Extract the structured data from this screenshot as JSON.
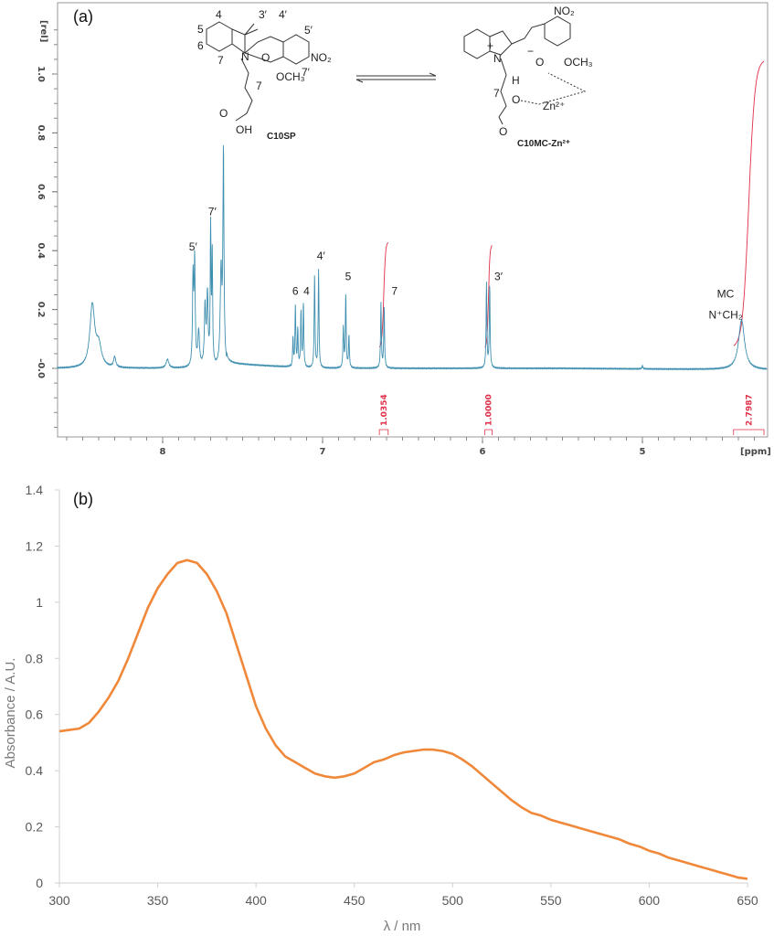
{
  "chart_data": [
    {
      "type": "line",
      "panel_label": "(a)",
      "xlabel": "[ppm]",
      "ylabel": "[rel]",
      "xlim": [
        8.66,
        4.22
      ],
      "x_reversed": true,
      "ylim": [
        -0.23,
        1.19
      ],
      "grid": false,
      "x_ticks": [
        {
          "v": 8,
          "label": "8"
        },
        {
          "v": 7,
          "label": "7"
        },
        {
          "v": 6,
          "label": "6"
        },
        {
          "v": 5,
          "label": "5"
        }
      ],
      "y_ticks": [
        {
          "v": 1.0,
          "label": "1.0"
        },
        {
          "v": 0.8,
          "label": "0.8"
        },
        {
          "v": 0.6,
          "label": "0.6"
        },
        {
          "v": 0.4,
          "label": "0.4"
        },
        {
          "v": 0.2,
          "label": "0.2"
        },
        {
          "v": 0.0,
          "label": "-0.0"
        }
      ],
      "line_color": "#3f8fb0",
      "integral_color": "#e0304a",
      "peaks": [
        {
          "ppm": 8.44,
          "height": 0.21,
          "width": 0.018
        },
        {
          "ppm": 8.4,
          "height": 0.07,
          "width": 0.02
        },
        {
          "ppm": 8.3,
          "height": 0.035,
          "width": 0.008
        },
        {
          "ppm": 7.97,
          "height": 0.03,
          "width": 0.01
        },
        {
          "ppm": 7.81,
          "height": 0.3,
          "width": 0.004
        },
        {
          "ppm": 7.8,
          "height": 0.35,
          "width": 0.004
        },
        {
          "ppm": 7.775,
          "height": 0.12,
          "width": 0.006
        },
        {
          "ppm": 7.735,
          "height": 0.2,
          "width": 0.005
        },
        {
          "ppm": 7.72,
          "height": 0.24,
          "width": 0.005
        },
        {
          "ppm": 7.7,
          "height": 0.46,
          "width": 0.003
        },
        {
          "ppm": 7.69,
          "height": 0.38,
          "width": 0.003
        },
        {
          "ppm": 7.635,
          "height": 0.32,
          "width": 0.006
        },
        {
          "ppm": 7.62,
          "height": 0.72,
          "width": 0.004
        },
        {
          "ppm": 7.185,
          "height": 0.1,
          "width": 0.003
        },
        {
          "ppm": 7.17,
          "height": 0.21,
          "width": 0.003
        },
        {
          "ppm": 7.155,
          "height": 0.13,
          "width": 0.003
        },
        {
          "ppm": 7.135,
          "height": 0.19,
          "width": 0.003
        },
        {
          "ppm": 7.12,
          "height": 0.22,
          "width": 0.003
        },
        {
          "ppm": 7.05,
          "height": 0.32,
          "width": 0.003
        },
        {
          "ppm": 7.025,
          "height": 0.33,
          "width": 0.003
        },
        {
          "ppm": 6.87,
          "height": 0.14,
          "width": 0.003
        },
        {
          "ppm": 6.855,
          "height": 0.25,
          "width": 0.003
        },
        {
          "ppm": 6.835,
          "height": 0.11,
          "width": 0.003
        },
        {
          "ppm": 6.635,
          "height": 0.22,
          "width": 0.003
        },
        {
          "ppm": 6.615,
          "height": 0.21,
          "width": 0.003
        },
        {
          "ppm": 5.975,
          "height": 0.29,
          "width": 0.003
        },
        {
          "ppm": 5.955,
          "height": 0.28,
          "width": 0.003
        },
        {
          "ppm": 5.0,
          "height": 0.01,
          "width": 0.004
        },
        {
          "ppm": 4.38,
          "height": 0.17,
          "width": 0.022
        }
      ],
      "peak_labels": [
        {
          "ppm": 7.81,
          "rel": 0.4,
          "label": "5′"
        },
        {
          "ppm": 7.69,
          "rel": 0.52,
          "label": "7′"
        },
        {
          "ppm": 7.17,
          "rel": 0.25,
          "label": "6"
        },
        {
          "ppm": 7.1,
          "rel": 0.25,
          "label": "4"
        },
        {
          "ppm": 7.01,
          "rel": 0.37,
          "label": "4′"
        },
        {
          "ppm": 6.84,
          "rel": 0.3,
          "label": "5"
        },
        {
          "ppm": 6.55,
          "rel": 0.25,
          "label": "7"
        },
        {
          "ppm": 5.9,
          "rel": 0.3,
          "label": "3′"
        },
        {
          "ppm": 4.48,
          "rel": 0.24,
          "label": "MC"
        },
        {
          "ppm": 4.48,
          "rel": 0.17,
          "label": "N⁺CH₂"
        }
      ],
      "integrals": [
        {
          "from": 6.645,
          "to": 6.59,
          "start": 0.07,
          "end": 0.43,
          "value": "1.0354"
        },
        {
          "from": 5.985,
          "to": 5.94,
          "start": 0.07,
          "end": 0.42,
          "value": "1.0000"
        },
        {
          "from": 4.43,
          "to": 4.24,
          "start": 0.07,
          "end": 1.05,
          "value": "2.7987"
        }
      ],
      "structures": {
        "left_name": "C10SP",
        "right_name": "C10MC-Zn²⁺",
        "left_atoms": {
          "n": "N",
          "o": "O",
          "no2": "NO₂",
          "och3": "OCH₃",
          "oh": "OH",
          "o_carbonyl": "O",
          "chain": "7",
          "pos4": "4",
          "pos5": "5",
          "pos6": "6",
          "pos7": "7",
          "pos3p": "3′",
          "pos4p": "4′",
          "pos5p": "5′",
          "pos7p": "7′"
        },
        "right_atoms": {
          "n": "N",
          "plus": "+",
          "minus": "−",
          "o": "O",
          "no2": "NO₂",
          "och3": "OCH₃",
          "h": "H",
          "oh_o": "O",
          "o_carbonyl": "O",
          "zn": "Zn²⁺",
          "chain": "7"
        }
      }
    },
    {
      "type": "line",
      "panel_label": "(b)",
      "xlabel": "λ / nm",
      "ylabel": "Absorbance / A.U.",
      "xlim": [
        300,
        650
      ],
      "ylim": [
        0,
        1.4
      ],
      "grid": false,
      "x_ticks": [
        300,
        350,
        400,
        450,
        500,
        550,
        600,
        650
      ],
      "y_ticks": [
        {
          "v": 0,
          "label": "0"
        },
        {
          "v": 0.2,
          "label": "0.2"
        },
        {
          "v": 0.4,
          "label": "0.4"
        },
        {
          "v": 0.6,
          "label": "0.6"
        },
        {
          "v": 0.8,
          "label": "0.8"
        },
        {
          "v": 1,
          "label": "1"
        },
        {
          "v": 1.2,
          "label": "1.2"
        },
        {
          "v": 1.4,
          "label": "1.4"
        }
      ],
      "line_color": "#f0883a",
      "x": [
        300,
        305,
        310,
        315,
        320,
        325,
        330,
        335,
        340,
        345,
        350,
        355,
        360,
        365,
        370,
        375,
        380,
        385,
        390,
        395,
        400,
        405,
        410,
        415,
        420,
        425,
        430,
        435,
        440,
        445,
        450,
        455,
        460,
        465,
        470,
        475,
        480,
        485,
        490,
        495,
        500,
        505,
        510,
        515,
        520,
        525,
        530,
        535,
        540,
        545,
        550,
        555,
        560,
        565,
        570,
        575,
        580,
        585,
        590,
        595,
        600,
        605,
        610,
        615,
        620,
        625,
        630,
        635,
        640,
        645,
        650
      ],
      "y": [
        0.54,
        0.545,
        0.55,
        0.57,
        0.61,
        0.66,
        0.72,
        0.8,
        0.89,
        0.98,
        1.05,
        1.1,
        1.14,
        1.15,
        1.14,
        1.1,
        1.04,
        0.96,
        0.85,
        0.74,
        0.63,
        0.55,
        0.49,
        0.45,
        0.43,
        0.41,
        0.39,
        0.38,
        0.375,
        0.38,
        0.39,
        0.41,
        0.43,
        0.44,
        0.455,
        0.465,
        0.47,
        0.475,
        0.475,
        0.47,
        0.46,
        0.44,
        0.415,
        0.385,
        0.355,
        0.325,
        0.295,
        0.27,
        0.25,
        0.24,
        0.225,
        0.215,
        0.205,
        0.195,
        0.185,
        0.175,
        0.165,
        0.155,
        0.14,
        0.13,
        0.115,
        0.105,
        0.09,
        0.08,
        0.07,
        0.06,
        0.05,
        0.04,
        0.03,
        0.02,
        0.015
      ]
    }
  ]
}
